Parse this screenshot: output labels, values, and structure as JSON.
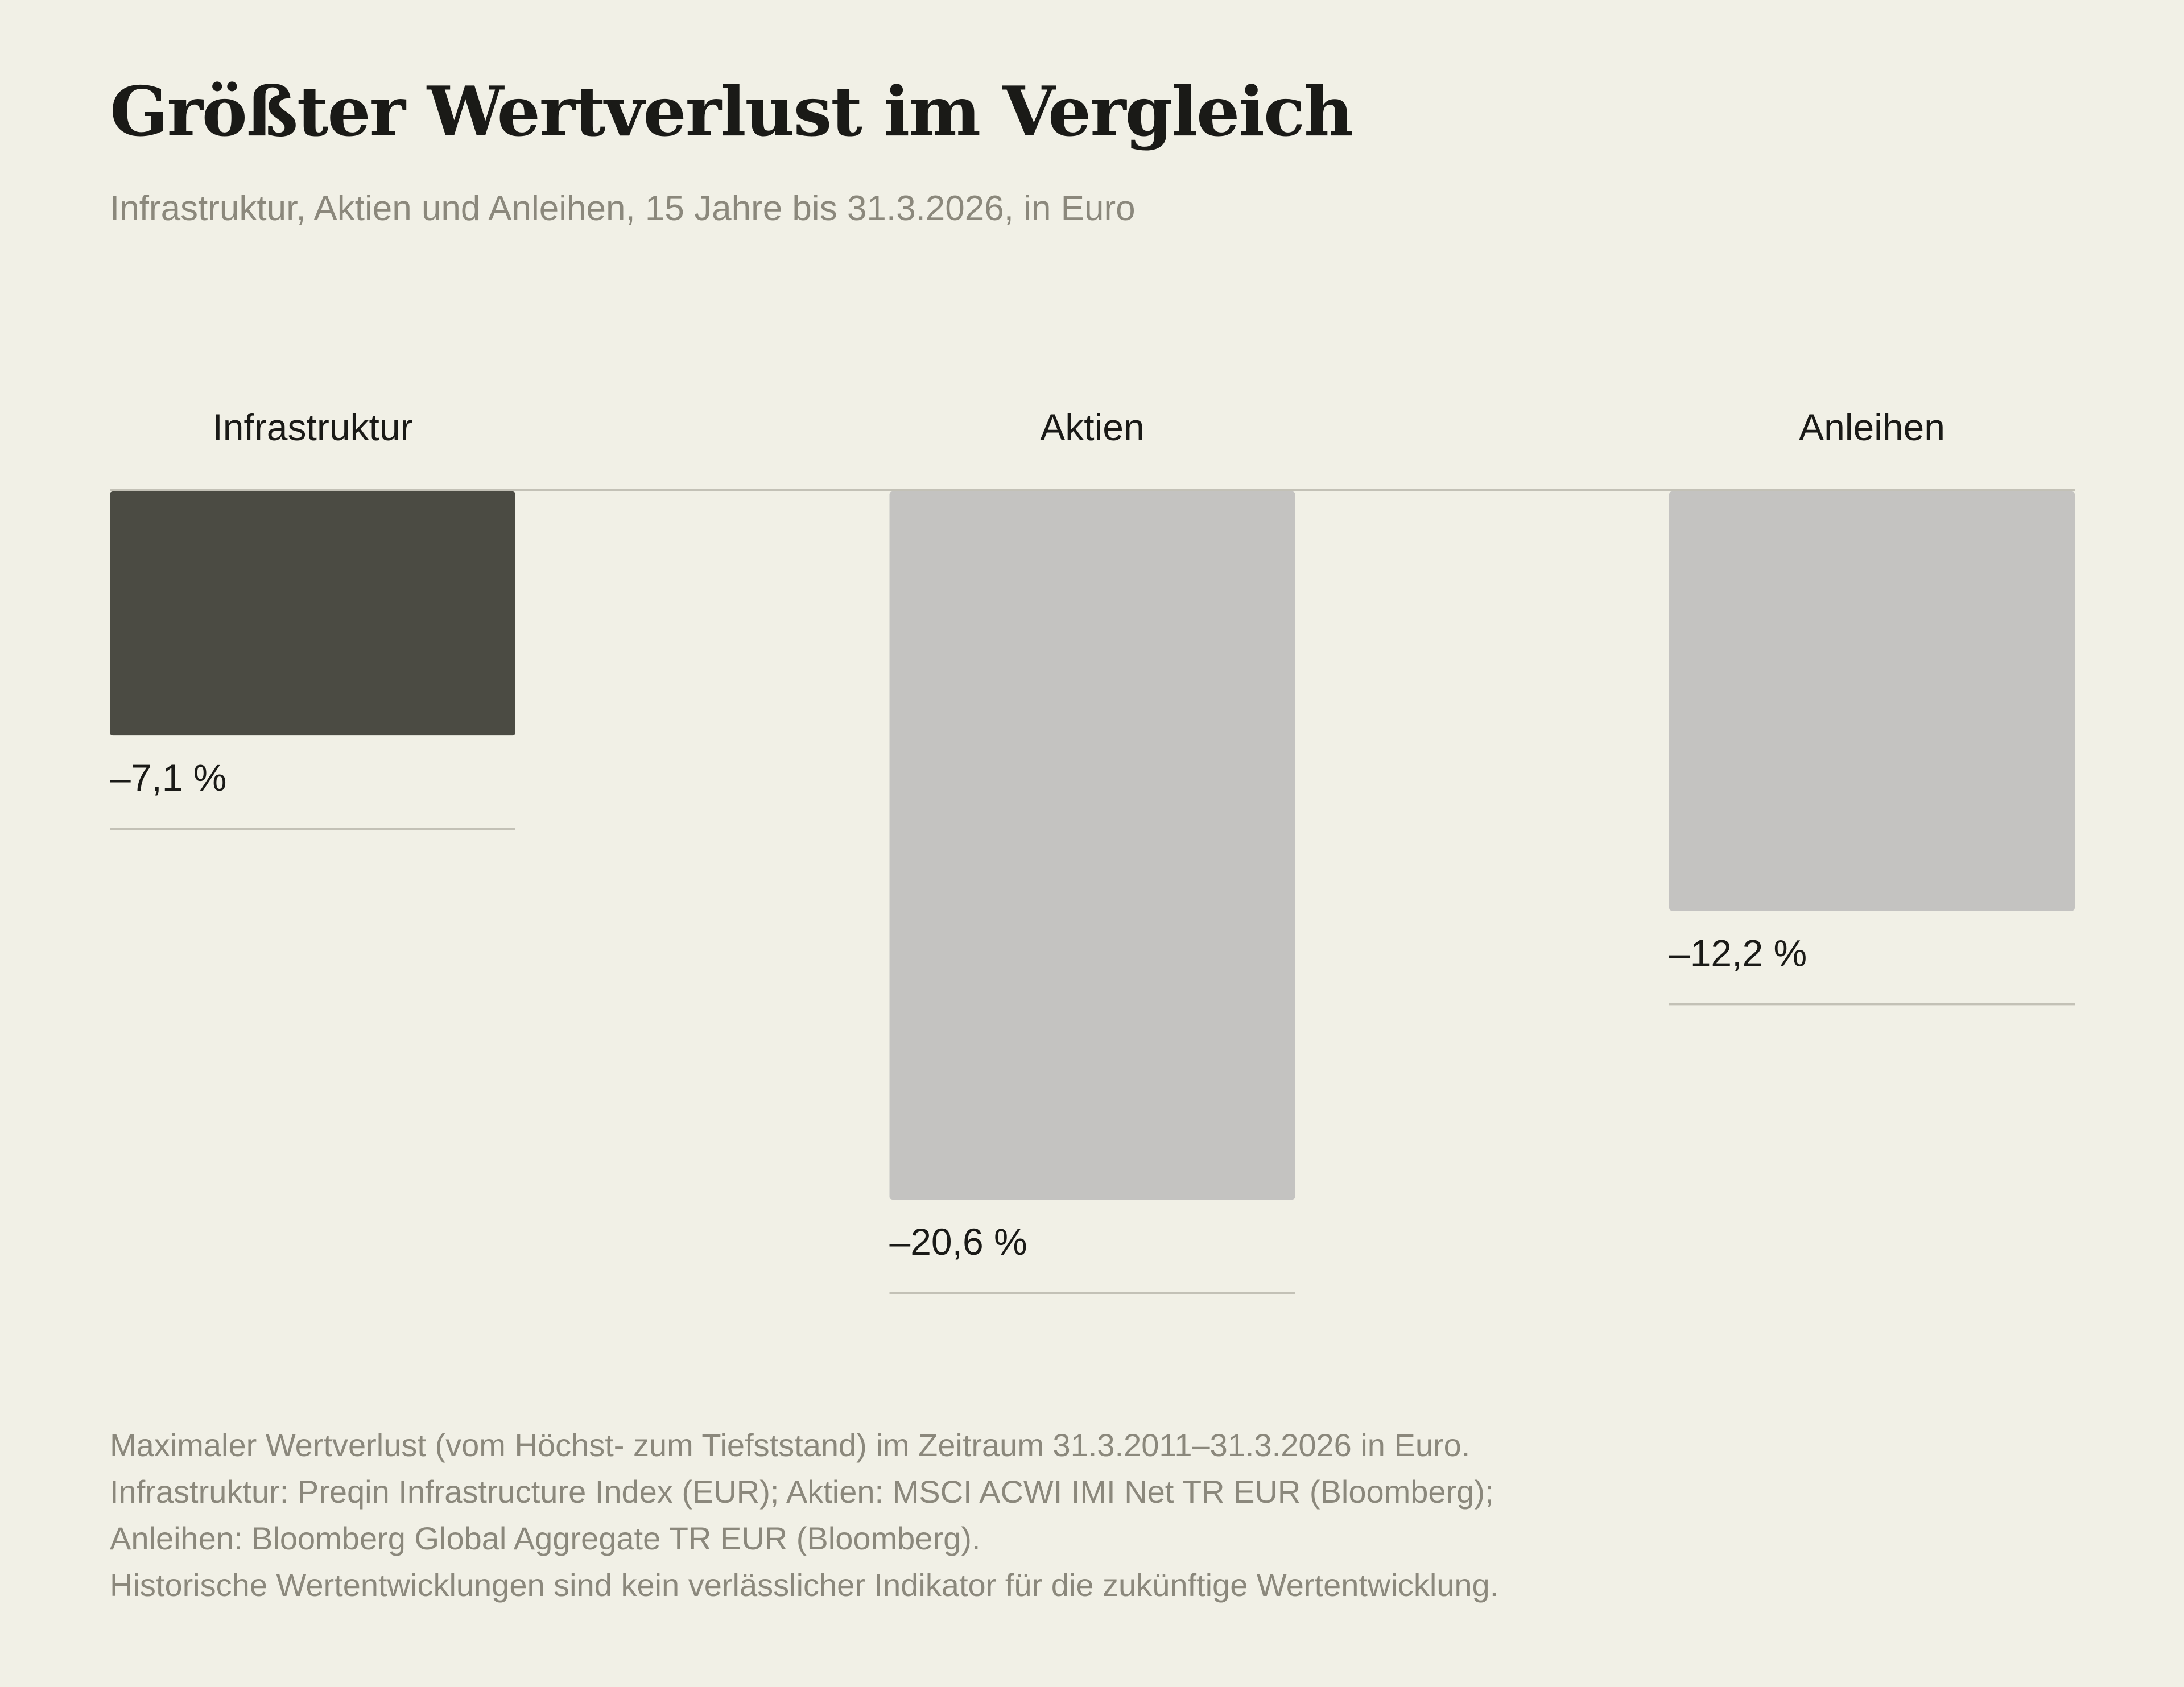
{
  "title": "Größter Wertverlust im Vergleich",
  "subtitle": "Infrastruktur, Aktien und Anleihen, 15 Jahre bis 31.3.2026, in Euro",
  "chart_data": {
    "type": "bar",
    "orientation": "vertical-downward",
    "categories": [
      "Infrastruktur",
      "Aktien",
      "Anleihen"
    ],
    "values": [
      -7.1,
      -20.6,
      -12.2
    ],
    "value_labels": [
      "–7,1 %",
      "–20,6 %",
      "–12,2 %"
    ],
    "unit": "%",
    "ylim": [
      -20.6,
      0
    ],
    "highlight_category": "Infrastruktur",
    "colors": {
      "highlight": "#4b4b43",
      "default": "#c4c3c1",
      "baseline": "#c3c1b6",
      "label": "#1a1a17",
      "background": "#f1f0e6",
      "muted_text": "#8b887c"
    },
    "grid": false,
    "legend": false
  },
  "footnotes": [
    "Maximaler Wertverlust (vom Höchst- zum Tiefststand) im Zeitraum 31.3.2011–31.3.2026 in Euro.",
    "Infrastruktur: Preqin Infrastructure Index (EUR); Aktien: MSCI ACWI IMI Net TR EUR (Bloomberg);",
    "Anleihen: Bloomberg Global Aggregate TR EUR (Bloomberg).",
    "Historische Wertentwicklungen sind kein verlässlicher Indikator für die zukünftige Wertentwicklung."
  ]
}
